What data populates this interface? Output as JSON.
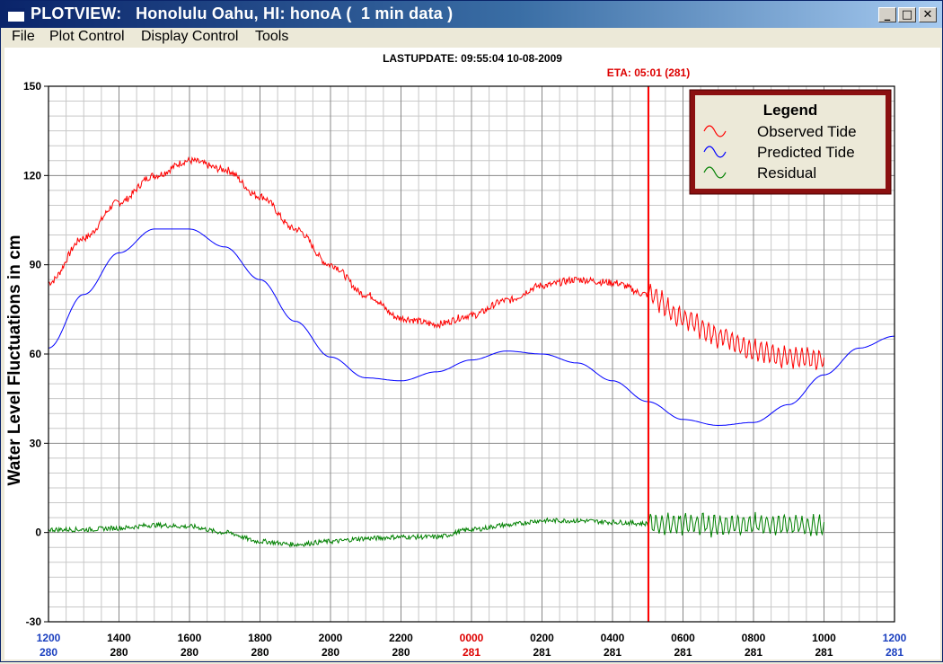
{
  "window": {
    "title": "PLOTVIEW:   Honolulu Oahu, HI: honoA (  1 min data )",
    "controls": {
      "minimize": "_",
      "maximize": "□",
      "close": "✕"
    }
  },
  "menu": {
    "items": [
      "File",
      "Plot Control",
      "Display Control",
      "Tools"
    ]
  },
  "plot": {
    "last_update": "LASTUPDATE: 09:55:04  10-08-2009",
    "eta_label": "ETA: 05:01 (281)",
    "eta_color": "#ff0000"
  },
  "chart_data": {
    "type": "line",
    "ylabel": "Water Level Fluctuations in cm",
    "xlabel": "",
    "ylim": [
      -30,
      150
    ],
    "y_ticks": [
      -30,
      0,
      30,
      60,
      90,
      120,
      150
    ],
    "x_ticks": [
      {
        "time": "1200",
        "day": "280",
        "highlight": true
      },
      {
        "time": "1400",
        "day": "280"
      },
      {
        "time": "1600",
        "day": "280"
      },
      {
        "time": "1800",
        "day": "280"
      },
      {
        "time": "2000",
        "day": "280"
      },
      {
        "time": "2200",
        "day": "280"
      },
      {
        "time": "0000",
        "day": "281",
        "red": true
      },
      {
        "time": "0200",
        "day": "281"
      },
      {
        "time": "0400",
        "day": "281"
      },
      {
        "time": "0600",
        "day": "281"
      },
      {
        "time": "0800",
        "day": "281"
      },
      {
        "time": "1000",
        "day": "281"
      },
      {
        "time": "1200",
        "day": "281",
        "highlight": true
      }
    ],
    "x_range_hours": [
      0,
      24
    ],
    "eta_hour": 17.02,
    "grid": true,
    "legend": {
      "title": "Legend",
      "position": "top-right",
      "entries": [
        {
          "name": "Observed Tide",
          "color": "#ff0000"
        },
        {
          "name": "Predicted Tide",
          "color": "#0000ff"
        },
        {
          "name": "Residual",
          "color": "#008000"
        }
      ]
    },
    "series": [
      {
        "name": "Observed Tide",
        "color": "#ff0000",
        "noise": 1.2,
        "noise_after_eta": 3.5,
        "x": [
          0,
          1,
          2,
          3,
          4,
          5,
          6,
          7,
          8,
          9,
          10,
          11,
          12,
          13,
          14,
          15,
          16,
          17,
          18,
          19,
          20,
          21,
          22
        ],
        "y": [
          84,
          99,
          111,
          120,
          125,
          122,
          113,
          102,
          90,
          80,
          72,
          70,
          73,
          78,
          83,
          85,
          84,
          80,
          72,
          66,
          61,
          59,
          58
        ]
      },
      {
        "name": "Predicted Tide",
        "color": "#0000ff",
        "noise": 0,
        "x": [
          0,
          1,
          2,
          3,
          4,
          5,
          6,
          7,
          8,
          9,
          10,
          11,
          12,
          13,
          14,
          15,
          16,
          17,
          18,
          19,
          20,
          21,
          22,
          23,
          24
        ],
        "y": [
          62,
          80,
          94,
          102,
          102,
          96,
          85,
          71,
          59,
          52,
          51,
          54,
          58,
          61,
          60,
          57,
          51,
          44,
          38,
          36,
          37,
          43,
          53,
          62,
          66
        ]
      },
      {
        "name": "Residual",
        "color": "#008000",
        "noise": 0.8,
        "noise_after_eta": 3.5,
        "x": [
          0,
          1,
          2,
          3,
          4,
          5,
          6,
          7,
          8,
          9,
          10,
          11,
          12,
          13,
          14,
          15,
          16,
          17,
          18,
          19,
          20,
          21,
          22
        ],
        "y": [
          1,
          1,
          1.5,
          2.5,
          2,
          0,
          -3,
          -4,
          -3,
          -2,
          -1.5,
          -1.5,
          1,
          2.5,
          4,
          4,
          3.5,
          3,
          3,
          2.5,
          2.5,
          2.5,
          2
        ]
      }
    ]
  }
}
